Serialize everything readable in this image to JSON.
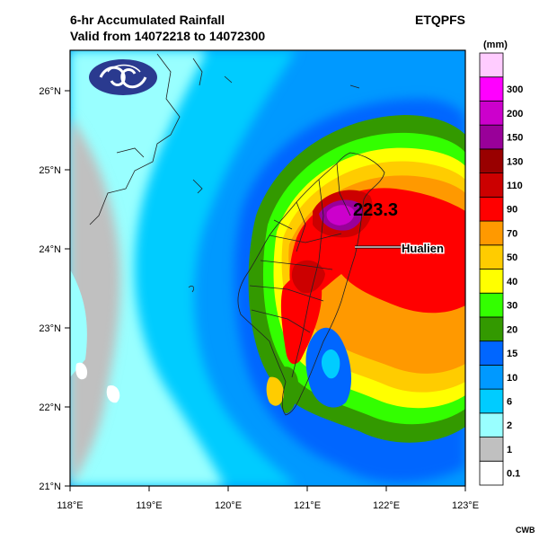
{
  "title_line1": "6-hr Accumulated Rainfall",
  "title_line2": "Valid from 14072218 to 14072300",
  "model": "ETQPFS",
  "credit": "CWB",
  "units": "(mm)",
  "max_value": "223.3",
  "place_label": "Hualien",
  "lat_ticks": [
    "26°N",
    "25°N",
    "24°N",
    "23°N",
    "22°N",
    "21°N"
  ],
  "lon_ticks": [
    "118°E",
    "119°E",
    "120°E",
    "121°E",
    "122°E",
    "123°E"
  ],
  "colorbar": [
    {
      "label": "0.1",
      "color": "#ffffff"
    },
    {
      "label": "1",
      "color": "#c0c0c0"
    },
    {
      "label": "2",
      "color": "#99ffff"
    },
    {
      "label": "6",
      "color": "#00ccff"
    },
    {
      "label": "10",
      "color": "#0099ff"
    },
    {
      "label": "15",
      "color": "#0066ff"
    },
    {
      "label": "20",
      "color": "#339900"
    },
    {
      "label": "30",
      "color": "#33ff00"
    },
    {
      "label": "40",
      "color": "#ffff00"
    },
    {
      "label": "50",
      "color": "#ffcc00"
    },
    {
      "label": "70",
      "color": "#ff9900"
    },
    {
      "label": "90",
      "color": "#ff0000"
    },
    {
      "label": "110",
      "color": "#cc0000"
    },
    {
      "label": "130",
      "color": "#990000"
    },
    {
      "label": "150",
      "color": "#990099"
    },
    {
      "label": "200",
      "color": "#cc00cc"
    },
    {
      "label": "300",
      "color": "#ff00ff"
    },
    {
      "label": "",
      "color": "#ffccff"
    }
  ],
  "colors": {
    "ocean_base": "#0099ff",
    "land_outline": "#222222"
  },
  "logo": "cwb-logo-icon"
}
